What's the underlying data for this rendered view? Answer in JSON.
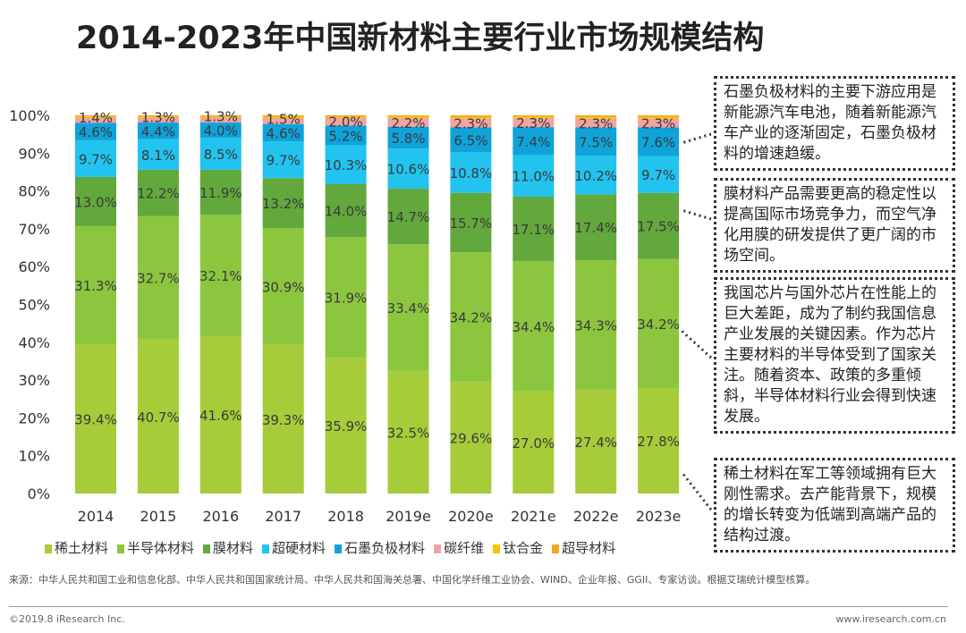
{
  "chart_data": {
    "type": "bar",
    "stacked": true,
    "title": "2014-2023年中国新材料主要行业市场规模结构",
    "categories": [
      "2014",
      "2015",
      "2016",
      "2017",
      "2018",
      "2019e",
      "2020e",
      "2021e",
      "2022e",
      "2023e"
    ],
    "ylim": [
      0,
      100
    ],
    "yticks": [
      "0%",
      "10%",
      "20%",
      "30%",
      "40%",
      "50%",
      "60%",
      "70%",
      "80%",
      "90%",
      "100%"
    ],
    "grid": false,
    "legend_position": "bottom",
    "series": [
      {
        "name": "稀土材料",
        "color": "#a6cc3a",
        "values": [
          39.4,
          40.7,
          41.6,
          39.3,
          35.9,
          32.5,
          29.6,
          27.0,
          27.4,
          27.8
        ],
        "labeled": true
      },
      {
        "name": "半导体材料",
        "color": "#8cc63f",
        "values": [
          31.3,
          32.7,
          32.1,
          30.9,
          31.9,
          33.4,
          34.2,
          34.4,
          34.3,
          34.2
        ],
        "labeled": true
      },
      {
        "name": "膜材料",
        "color": "#62a83c",
        "values": [
          13.0,
          12.2,
          11.9,
          13.2,
          14.0,
          14.7,
          15.7,
          17.1,
          17.4,
          17.5
        ],
        "labeled": true
      },
      {
        "name": "超硬材料",
        "color": "#22c3ef",
        "values": [
          9.7,
          8.1,
          8.5,
          9.7,
          10.3,
          10.6,
          10.8,
          11.0,
          10.2,
          9.7
        ],
        "labeled": true
      },
      {
        "name": "石墨负极材料",
        "color": "#0fa3da",
        "values": [
          4.6,
          4.4,
          4.0,
          4.6,
          5.2,
          5.8,
          6.5,
          7.4,
          7.5,
          7.6
        ],
        "labeled": true
      },
      {
        "name": "碳纤维",
        "color": "#f2a3a3",
        "values": [
          1.4,
          1.3,
          1.3,
          1.5,
          2.0,
          2.2,
          2.3,
          2.3,
          2.3,
          2.3
        ],
        "labeled": true
      },
      {
        "name": "钛合金",
        "color": "#f7c600",
        "values": [
          0.3,
          0.3,
          0.3,
          0.4,
          0.35,
          0.4,
          0.45,
          0.4,
          0.45,
          0.45
        ],
        "labeled": false
      },
      {
        "name": "超导材料",
        "color": "#f5a623",
        "values": [
          0.3,
          0.3,
          0.3,
          0.4,
          0.35,
          0.4,
          0.45,
          0.4,
          0.45,
          0.45
        ],
        "labeled": false
      }
    ]
  },
  "notes": [
    "石墨负极材料的主要下游应用是新能源汽车电池，随着新能源汽车产业的逐渐固定，石墨负极材料的增速趋缓。",
    "膜材料产品需要更高的稳定性以提高国际市场竞争力，而空气净化用膜的研发提供了更广阔的市场空间。",
    "我国芯片与国外芯片在性能上的巨大差距，成为了制约我国信息产业发展的关键因素。作为芯片主要材料的半导体受到了国家关注。随着资本、政策的多重倾斜，半导体材料行业会得到快速发展。",
    "稀土材料在军工等领域拥有巨大刚性需求。去产能背景下，规模的增长转变为低端到高端产品的结构过渡。"
  ],
  "footer": {
    "source": "来源：中华人民共和国工业和信息化部、中华人民共和国国家统计局、中华人民共和国海关总署、中国化学纤维工业协会、WIND、企业年报、GGII、专家访谈。根据艾瑞统计模型核算。",
    "copyright": "©2019.8 iResearch Inc.",
    "url": "www.iresearch.com.cn"
  }
}
